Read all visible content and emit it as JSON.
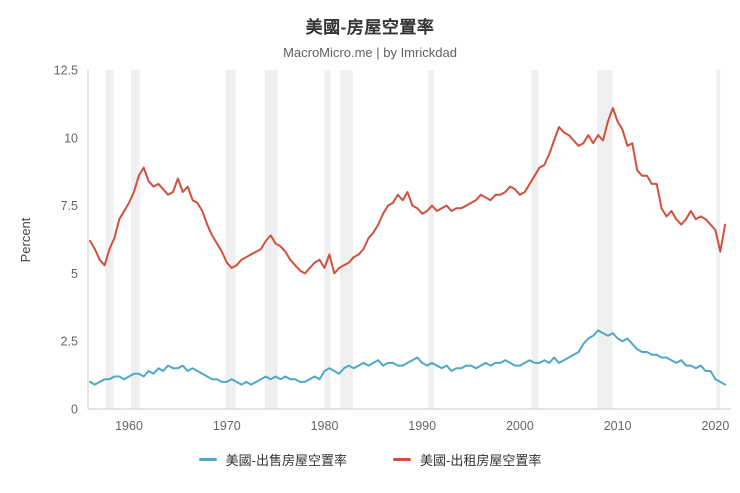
{
  "header": {
    "title": "美國-房屋空置率",
    "subtitle": "MacroMicro.me | by Imrickdad"
  },
  "chart_data": {
    "type": "line",
    "title": "美國-房屋空置率",
    "subtitle": "MacroMicro.me | by Imrickdad",
    "xlabel": "",
    "ylabel": "Percent",
    "ylim": [
      0,
      12.5
    ],
    "xlim": [
      1955.8,
      2021.6
    ],
    "y_ticks": [
      0,
      2.5,
      5,
      7.5,
      10,
      12.5
    ],
    "y_tick_labels": [
      "0",
      "2.5",
      "5",
      "7.5",
      "10",
      "12.5"
    ],
    "x_ticks": [
      1960,
      1970,
      1980,
      1990,
      2000,
      2010,
      2020
    ],
    "grid": false,
    "legend_position": "bottom",
    "axis_color": "#cccccc",
    "tick_label_color": "#666666",
    "band_color": "#e2e2e2",
    "x_start": 1956,
    "x_step": 0.5,
    "recession_bands": [
      [
        1957.6,
        1958.4
      ],
      [
        1960.2,
        1961.1
      ],
      [
        1969.9,
        1970.9
      ],
      [
        1973.9,
        1975.2
      ],
      [
        1980.0,
        1980.6
      ],
      [
        1981.6,
        1982.9
      ],
      [
        1990.6,
        1991.2
      ],
      [
        2001.2,
        2001.9
      ],
      [
        2007.9,
        2009.5
      ],
      [
        2020.1,
        2020.5
      ]
    ],
    "series": [
      {
        "name": "美國-出售房屋空置率",
        "color": "#4FA8C7",
        "values": [
          1.0,
          0.9,
          1.0,
          1.1,
          1.1,
          1.2,
          1.2,
          1.1,
          1.2,
          1.3,
          1.3,
          1.2,
          1.4,
          1.3,
          1.5,
          1.4,
          1.6,
          1.5,
          1.5,
          1.6,
          1.4,
          1.5,
          1.4,
          1.3,
          1.2,
          1.1,
          1.1,
          1.0,
          1.0,
          1.1,
          1.0,
          0.9,
          1.0,
          0.9,
          1.0,
          1.1,
          1.2,
          1.1,
          1.2,
          1.1,
          1.2,
          1.1,
          1.1,
          1.0,
          1.0,
          1.1,
          1.2,
          1.1,
          1.4,
          1.5,
          1.4,
          1.3,
          1.5,
          1.6,
          1.5,
          1.6,
          1.7,
          1.6,
          1.7,
          1.8,
          1.6,
          1.7,
          1.7,
          1.6,
          1.6,
          1.7,
          1.8,
          1.9,
          1.7,
          1.6,
          1.7,
          1.6,
          1.5,
          1.6,
          1.4,
          1.5,
          1.5,
          1.6,
          1.6,
          1.5,
          1.6,
          1.7,
          1.6,
          1.7,
          1.7,
          1.8,
          1.7,
          1.6,
          1.6,
          1.7,
          1.8,
          1.7,
          1.7,
          1.8,
          1.7,
          1.9,
          1.7,
          1.8,
          1.9,
          2.0,
          2.1,
          2.4,
          2.6,
          2.7,
          2.9,
          2.8,
          2.7,
          2.8,
          2.6,
          2.5,
          2.6,
          2.4,
          2.2,
          2.1,
          2.1,
          2.0,
          2.0,
          1.9,
          1.9,
          1.8,
          1.7,
          1.8,
          1.6,
          1.6,
          1.5,
          1.6,
          1.4,
          1.4,
          1.1,
          1.0,
          0.9
        ]
      },
      {
        "name": "美國-出租房屋空置率",
        "color": "#D0513C",
        "values": [
          6.2,
          5.9,
          5.5,
          5.3,
          5.9,
          6.3,
          7.0,
          7.3,
          7.6,
          8.0,
          8.6,
          8.9,
          8.4,
          8.2,
          8.3,
          8.1,
          7.9,
          8.0,
          8.5,
          8.0,
          8.2,
          7.7,
          7.6,
          7.3,
          6.8,
          6.4,
          6.1,
          5.8,
          5.4,
          5.2,
          5.3,
          5.5,
          5.6,
          5.7,
          5.8,
          5.9,
          6.2,
          6.4,
          6.1,
          6.0,
          5.8,
          5.5,
          5.3,
          5.1,
          5.0,
          5.2,
          5.4,
          5.5,
          5.2,
          5.7,
          5.0,
          5.2,
          5.3,
          5.4,
          5.6,
          5.7,
          5.9,
          6.3,
          6.5,
          6.8,
          7.2,
          7.5,
          7.6,
          7.9,
          7.7,
          8.0,
          7.5,
          7.4,
          7.2,
          7.3,
          7.5,
          7.3,
          7.4,
          7.5,
          7.3,
          7.4,
          7.4,
          7.5,
          7.6,
          7.7,
          7.9,
          7.8,
          7.7,
          7.9,
          7.9,
          8.0,
          8.2,
          8.1,
          7.9,
          8.0,
          8.3,
          8.6,
          8.9,
          9.0,
          9.4,
          9.9,
          10.4,
          10.2,
          10.1,
          9.9,
          9.7,
          9.8,
          10.1,
          9.8,
          10.1,
          9.9,
          10.6,
          11.1,
          10.6,
          10.3,
          9.7,
          9.8,
          8.8,
          8.6,
          8.6,
          8.3,
          8.3,
          7.4,
          7.1,
          7.3,
          7.0,
          6.8,
          7.0,
          7.3,
          7.0,
          7.1,
          7.0,
          6.8,
          6.6,
          5.8,
          6.8
        ]
      }
    ]
  }
}
